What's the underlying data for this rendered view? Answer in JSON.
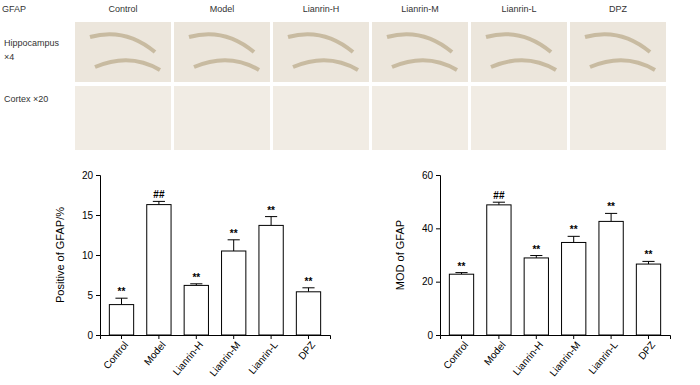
{
  "figure_labels": {
    "stain": "GFAP",
    "columns": [
      "Control",
      "Model",
      "Lianrin-H",
      "Lianrin-M",
      "Lianrin-L",
      "DPZ"
    ],
    "rows": [
      [
        "Hippocampus",
        "×4"
      ],
      [
        "Cortex ×20"
      ]
    ]
  },
  "chart_data": [
    {
      "type": "bar",
      "y_label": "Positive of GFAP/%",
      "categories": [
        "Control",
        "Model",
        "Lianrin-H",
        "Lianrin-M",
        "Lianrin-L",
        "DPZ"
      ],
      "values": [
        3.8,
        16.3,
        6.2,
        10.5,
        13.7,
        5.4
      ],
      "errors": [
        0.8,
        0.4,
        0.2,
        1.4,
        1.1,
        0.5
      ],
      "annotations": [
        "**",
        "##",
        "**",
        "**",
        "**",
        "**"
      ],
      "color": "#ffffff",
      "ylim": [
        0,
        20
      ],
      "yticks": [
        0,
        5,
        10,
        15,
        20
      ]
    },
    {
      "type": "bar",
      "y_label": "MOD of GFAP",
      "categories": [
        "Control",
        "Model",
        "Lianrin-H",
        "Lianrin-M",
        "Lianrin-L",
        "DPZ"
      ],
      "values": [
        22.8,
        48.8,
        28.9,
        34.7,
        42.6,
        26.6
      ],
      "errors": [
        0.6,
        1.0,
        0.9,
        2.3,
        3.0,
        1.0
      ],
      "annotations": [
        "**",
        "##",
        "**",
        "**",
        "**",
        "**"
      ],
      "color": "#ffffff",
      "ylim": [
        0,
        60
      ],
      "yticks": [
        0,
        20,
        40,
        60
      ]
    }
  ]
}
